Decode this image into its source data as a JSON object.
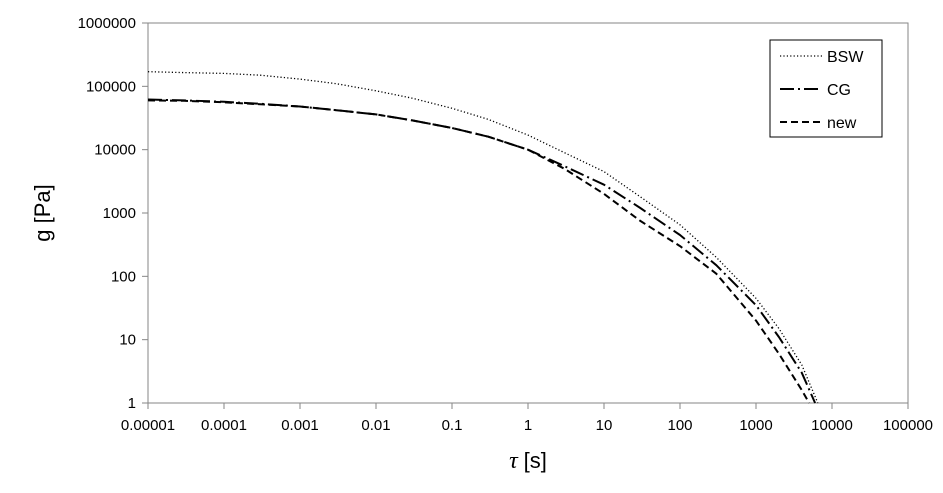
{
  "chart_data": {
    "type": "line",
    "title": "",
    "xlabel": {
      "symbol": "τ",
      "unit": "[s]"
    },
    "ylabel": "g [Pa]",
    "x_scale": "log",
    "y_scale": "log",
    "xlim": [
      1e-05,
      100000
    ],
    "ylim": [
      1,
      1000000
    ],
    "x_ticks": [
      "0.00001",
      "0.0001",
      "0.001",
      "0.01",
      "0.1",
      "1",
      "10",
      "100",
      "1000",
      "10000",
      "100000"
    ],
    "y_ticks": [
      "1",
      "10",
      "100",
      "1000",
      "10000",
      "100000",
      "1000000"
    ],
    "grid": false,
    "legend_position": "top-right",
    "series": [
      {
        "name": "BSW",
        "style": "dotted",
        "color": "#000000",
        "points": [
          [
            1e-05,
            170000
          ],
          [
            3e-05,
            165000
          ],
          [
            0.0001,
            160000
          ],
          [
            0.0003,
            150000
          ],
          [
            0.001,
            130000
          ],
          [
            0.003,
            110000
          ],
          [
            0.01,
            85000
          ],
          [
            0.03,
            65000
          ],
          [
            0.1,
            45000
          ],
          [
            0.3,
            30000
          ],
          [
            1,
            17000
          ],
          [
            3,
            9000
          ],
          [
            10,
            4500
          ],
          [
            30,
            1800
          ],
          [
            100,
            650
          ],
          [
            300,
            200
          ],
          [
            1000,
            45
          ],
          [
            2000,
            15
          ],
          [
            4000,
            4
          ],
          [
            6500,
            1
          ]
        ]
      },
      {
        "name": "CG",
        "style": "dash-dot",
        "color": "#000000",
        "points": [
          [
            1e-05,
            62000
          ],
          [
            3e-05,
            60000
          ],
          [
            0.0001,
            57000
          ],
          [
            0.0003,
            53000
          ],
          [
            0.001,
            48000
          ],
          [
            0.003,
            42000
          ],
          [
            0.01,
            36000
          ],
          [
            0.03,
            29000
          ],
          [
            0.1,
            22000
          ],
          [
            0.3,
            16000
          ],
          [
            1,
            10000
          ],
          [
            3,
            5500
          ],
          [
            10,
            2800
          ],
          [
            30,
            1200
          ],
          [
            100,
            450
          ],
          [
            300,
            150
          ],
          [
            1000,
            35
          ],
          [
            2000,
            11
          ],
          [
            4000,
            3
          ],
          [
            6000,
            1
          ]
        ]
      },
      {
        "name": "new",
        "style": "dashed",
        "color": "#000000",
        "points": [
          [
            1e-05,
            60000
          ],
          [
            3e-05,
            59000
          ],
          [
            0.0001,
            56000
          ],
          [
            0.0003,
            52000
          ],
          [
            0.001,
            48000
          ],
          [
            0.003,
            42000
          ],
          [
            0.01,
            36000
          ],
          [
            0.03,
            29000
          ],
          [
            0.1,
            22000
          ],
          [
            0.3,
            16000
          ],
          [
            1,
            10000
          ],
          [
            3,
            5000
          ],
          [
            10,
            2000
          ],
          [
            30,
            750
          ],
          [
            100,
            300
          ],
          [
            300,
            110
          ],
          [
            1000,
            20
          ],
          [
            2000,
            6
          ],
          [
            4000,
            1.6
          ],
          [
            5000,
            1
          ]
        ]
      }
    ]
  }
}
